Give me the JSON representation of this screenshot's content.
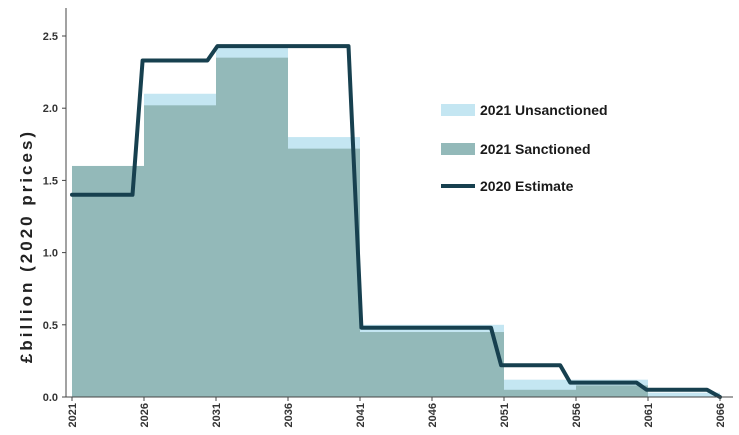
{
  "chart_data": {
    "type": "area",
    "ylabel": "£billion (2020 prices)",
    "xlabel": "",
    "title": "",
    "ylim": [
      0,
      2.6
    ],
    "xlim": [
      2021,
      2066
    ],
    "yticks": [
      "0.0",
      "0.5",
      "1.0",
      "1.5",
      "2.0",
      "2.5"
    ],
    "xticks": [
      "2021",
      "2026",
      "2031",
      "2036",
      "2041",
      "2046",
      "2051",
      "2056",
      "2061",
      "2066"
    ],
    "legend_position": "right",
    "series": [
      {
        "name": "2021 Unsanctioned",
        "kind": "step-area",
        "color": "#c4e6f2",
        "steps": [
          {
            "x0": 2021,
            "x1": 2026,
            "y": 1.6
          },
          {
            "x0": 2026,
            "x1": 2031,
            "y": 2.1
          },
          {
            "x0": 2031,
            "x1": 2036,
            "y": 2.42
          },
          {
            "x0": 2036,
            "x1": 2041,
            "y": 1.8
          },
          {
            "x0": 2041,
            "x1": 2051,
            "y": 0.5
          },
          {
            "x0": 2051,
            "x1": 2056,
            "y": 0.12
          },
          {
            "x0": 2056,
            "x1": 2061,
            "y": 0.12
          },
          {
            "x0": 2061,
            "x1": 2066,
            "y": 0.03
          }
        ]
      },
      {
        "name": "2021 Sanctioned",
        "kind": "step-area",
        "color": "#93b9b9",
        "steps": [
          {
            "x0": 2021,
            "x1": 2026,
            "y": 1.6
          },
          {
            "x0": 2026,
            "x1": 2031,
            "y": 2.02
          },
          {
            "x0": 2031,
            "x1": 2036,
            "y": 2.35
          },
          {
            "x0": 2036,
            "x1": 2041,
            "y": 1.72
          },
          {
            "x0": 2041,
            "x1": 2051,
            "y": 0.45
          },
          {
            "x0": 2051,
            "x1": 2056,
            "y": 0.05
          },
          {
            "x0": 2056,
            "x1": 2061,
            "y": 0.08
          },
          {
            "x0": 2061,
            "x1": 2066,
            "y": 0.0
          }
        ]
      },
      {
        "name": "2020 Estimate",
        "kind": "line",
        "color": "#17404f",
        "points": [
          [
            2021,
            1.4
          ],
          [
            2025.2,
            1.4
          ],
          [
            2025.9,
            2.33
          ],
          [
            2030.4,
            2.33
          ],
          [
            2031.1,
            2.43
          ],
          [
            2040.2,
            2.43
          ],
          [
            2041.1,
            0.48
          ],
          [
            2050.1,
            0.48
          ],
          [
            2050.8,
            0.22
          ],
          [
            2054.9,
            0.22
          ],
          [
            2055.6,
            0.1
          ],
          [
            2060.2,
            0.1
          ],
          [
            2060.9,
            0.05
          ],
          [
            2065.1,
            0.05
          ],
          [
            2066,
            0.0
          ]
        ]
      }
    ],
    "legend": [
      {
        "label": "2021 Unsanctioned",
        "swatch": "#c4e6f2",
        "kind": "box"
      },
      {
        "label": "2021 Sanctioned",
        "swatch": "#93b9b9",
        "kind": "box"
      },
      {
        "label": "2020 Estimate",
        "swatch": "#17404f",
        "kind": "line"
      }
    ]
  }
}
